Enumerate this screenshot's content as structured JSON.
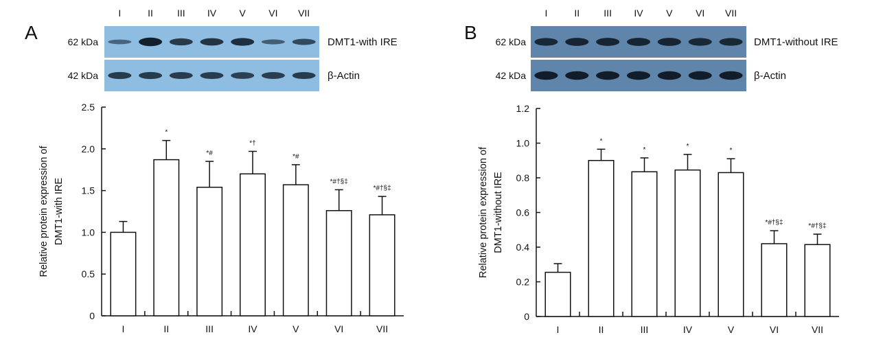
{
  "panels": [
    {
      "letter": "A",
      "blot": {
        "lanes": [
          "I",
          "II",
          "III",
          "IV",
          "V",
          "VI",
          "VII"
        ],
        "rows": [
          {
            "size": "62 kDa",
            "label": "DMT1-with IRE",
            "intensity": [
              0.3,
              0.95,
              0.7,
              0.75,
              0.8,
              0.35,
              0.55
            ]
          },
          {
            "size": "42 kDa",
            "label": "β-Actin",
            "intensity": [
              0.7,
              0.7,
              0.68,
              0.68,
              0.65,
              0.66,
              0.68
            ]
          }
        ],
        "background": "#8fbde2"
      },
      "chart_data": {
        "type": "bar",
        "categories": [
          "I",
          "II",
          "III",
          "IV",
          "V",
          "VI",
          "VII"
        ],
        "values": [
          1.0,
          1.87,
          1.54,
          1.7,
          1.57,
          1.26,
          1.21
        ],
        "errors": [
          0.13,
          0.23,
          0.31,
          0.27,
          0.24,
          0.25,
          0.22
        ],
        "annotations": [
          "",
          "*",
          "*#",
          "*†",
          "*#",
          "*#†§‡",
          "*#†§‡"
        ],
        "ylabel": "Relative protein expression of DMT1-with IRE",
        "ylabel_lines": [
          "Relative protein expression of",
          "DMT1-with IRE"
        ],
        "ylim": [
          0,
          2.5
        ],
        "yticks": [
          0,
          0.5,
          1.0,
          1.5,
          2.0,
          2.5
        ],
        "ytick_labels": [
          "0",
          "0.5",
          "1.0",
          "1.5",
          "2.0",
          "2.5"
        ]
      }
    },
    {
      "letter": "B",
      "blot": {
        "lanes": [
          "I",
          "II",
          "III",
          "IV",
          "V",
          "VI",
          "VII"
        ],
        "rows": [
          {
            "size": "62 kDa",
            "label": "DMT1-without IRE",
            "intensity": [
              0.8,
              0.85,
              0.85,
              0.85,
              0.85,
              0.8,
              0.8
            ]
          },
          {
            "size": "42 kDa",
            "label": "β-Actin",
            "intensity": [
              0.95,
              0.95,
              0.95,
              0.95,
              0.95,
              0.95,
              0.95
            ]
          }
        ],
        "background": "#5f86aa"
      },
      "chart_data": {
        "type": "bar",
        "categories": [
          "I",
          "II",
          "III",
          "IV",
          "V",
          "VI",
          "VII"
        ],
        "values": [
          0.255,
          0.9,
          0.835,
          0.845,
          0.83,
          0.42,
          0.415
        ],
        "errors": [
          0.05,
          0.065,
          0.08,
          0.09,
          0.08,
          0.075,
          0.06
        ],
        "annotations": [
          "",
          "*",
          "*",
          "*",
          "*",
          "*#†§‡",
          "*#†§‡"
        ],
        "ylabel": "Relative protein expression of DMT1-without IRE",
        "ylabel_lines": [
          "Relative protein expression of",
          "DMT1-without IRE"
        ],
        "ylim": [
          0,
          1.2
        ],
        "yticks": [
          0,
          0.2,
          0.4,
          0.6,
          0.8,
          1.0,
          1.2
        ],
        "ytick_labels": [
          "0",
          "0.2",
          "0.4",
          "0.6",
          "0.8",
          "1.0",
          "1.2"
        ]
      }
    }
  ]
}
